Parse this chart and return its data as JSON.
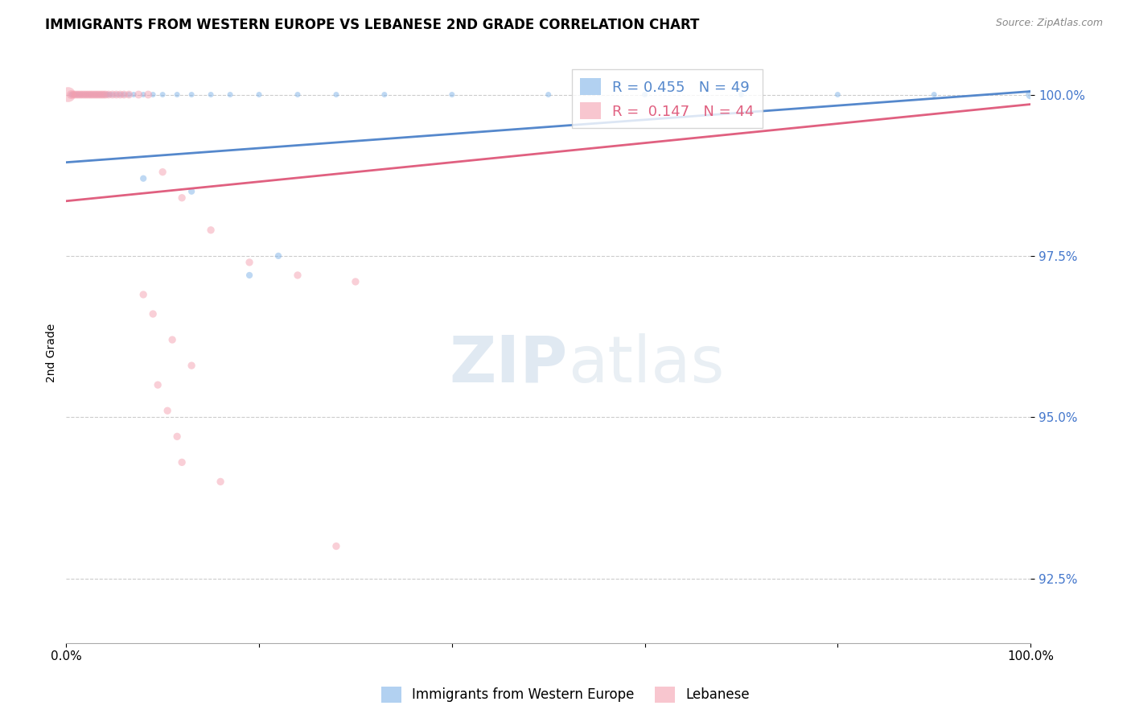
{
  "title": "IMMIGRANTS FROM WESTERN EUROPE VS LEBANESE 2ND GRADE CORRELATION CHART",
  "source": "Source: ZipAtlas.com",
  "ylabel": "2nd Grade",
  "xlim": [
    0.0,
    1.0
  ],
  "ylim": [
    0.915,
    1.005
  ],
  "yticks": [
    0.925,
    0.95,
    0.975,
    1.0
  ],
  "ytick_labels": [
    "92.5%",
    "95.0%",
    "97.5%",
    "100.0%"
  ],
  "xtick_positions": [
    0.0,
    0.2,
    0.4,
    0.6,
    0.8,
    1.0
  ],
  "xtick_labels": [
    "0.0%",
    "",
    "",
    "",
    "",
    "100.0%"
  ],
  "r_blue": 0.455,
  "n_blue": 49,
  "r_pink": 0.147,
  "n_pink": 44,
  "blue_color": "#7fb3e8",
  "pink_color": "#f4a0b0",
  "blue_line_color": "#5588cc",
  "pink_line_color": "#e06080",
  "watermark_zip": "ZIP",
  "watermark_atlas": "atlas",
  "blue_line": {
    "x0": 0.0,
    "x1": 1.0,
    "y0": 0.9895,
    "y1": 1.0005
  },
  "pink_line": {
    "x0": 0.0,
    "x1": 1.0,
    "y0": 0.9835,
    "y1": 0.9985
  },
  "blue_scatter": {
    "x": [
      0.005,
      0.007,
      0.009,
      0.011,
      0.013,
      0.015,
      0.017,
      0.019,
      0.021,
      0.023,
      0.025,
      0.027,
      0.029,
      0.031,
      0.033,
      0.035,
      0.037,
      0.039,
      0.041,
      0.043,
      0.045,
      0.048,
      0.052,
      0.056,
      0.06,
      0.065,
      0.07,
      0.08,
      0.09,
      0.1,
      0.115,
      0.13,
      0.15,
      0.17,
      0.2,
      0.24,
      0.28,
      0.33,
      0.4,
      0.5,
      0.6,
      0.7,
      0.8,
      0.9,
      1.0,
      0.08,
      0.13,
      0.22,
      0.19
    ],
    "y": [
      1.0,
      1.0,
      1.0,
      1.0,
      1.0,
      1.0,
      1.0,
      1.0,
      1.0,
      1.0,
      1.0,
      1.0,
      1.0,
      1.0,
      1.0,
      1.0,
      1.0,
      1.0,
      1.0,
      1.0,
      1.0,
      1.0,
      1.0,
      1.0,
      1.0,
      1.0,
      1.0,
      1.0,
      1.0,
      1.0,
      1.0,
      1.0,
      1.0,
      1.0,
      1.0,
      1.0,
      1.0,
      1.0,
      1.0,
      1.0,
      1.0,
      1.0,
      1.0,
      1.0,
      1.0,
      0.987,
      0.985,
      0.975,
      0.972
    ],
    "sizes": [
      25,
      25,
      25,
      25,
      25,
      25,
      25,
      25,
      25,
      25,
      25,
      25,
      25,
      25,
      25,
      25,
      25,
      25,
      25,
      25,
      25,
      25,
      25,
      25,
      25,
      25,
      25,
      25,
      25,
      25,
      25,
      25,
      25,
      25,
      25,
      25,
      25,
      25,
      25,
      25,
      25,
      25,
      25,
      25,
      70,
      35,
      35,
      35,
      35
    ]
  },
  "pink_scatter": {
    "x": [
      0.002,
      0.005,
      0.007,
      0.009,
      0.011,
      0.013,
      0.015,
      0.017,
      0.019,
      0.021,
      0.023,
      0.025,
      0.027,
      0.029,
      0.031,
      0.033,
      0.035,
      0.037,
      0.039,
      0.041,
      0.044,
      0.048,
      0.052,
      0.056,
      0.06,
      0.065,
      0.075,
      0.085,
      0.1,
      0.12,
      0.15,
      0.19,
      0.24,
      0.3,
      0.08,
      0.09,
      0.11,
      0.13,
      0.095,
      0.105,
      0.115,
      0.12,
      0.16,
      0.28
    ],
    "y": [
      1.0,
      1.0,
      1.0,
      1.0,
      1.0,
      1.0,
      1.0,
      1.0,
      1.0,
      1.0,
      1.0,
      1.0,
      1.0,
      1.0,
      1.0,
      1.0,
      1.0,
      1.0,
      1.0,
      1.0,
      1.0,
      1.0,
      1.0,
      1.0,
      1.0,
      1.0,
      1.0,
      1.0,
      0.988,
      0.984,
      0.979,
      0.974,
      0.972,
      0.971,
      0.969,
      0.966,
      0.962,
      0.958,
      0.955,
      0.951,
      0.947,
      0.943,
      0.94,
      0.93
    ],
    "sizes": [
      180,
      60,
      50,
      50,
      50,
      50,
      50,
      50,
      50,
      50,
      50,
      50,
      50,
      50,
      50,
      50,
      50,
      50,
      50,
      50,
      50,
      50,
      50,
      50,
      50,
      50,
      50,
      50,
      45,
      45,
      45,
      45,
      45,
      45,
      45,
      45,
      45,
      45,
      45,
      45,
      45,
      45,
      45,
      45
    ]
  }
}
